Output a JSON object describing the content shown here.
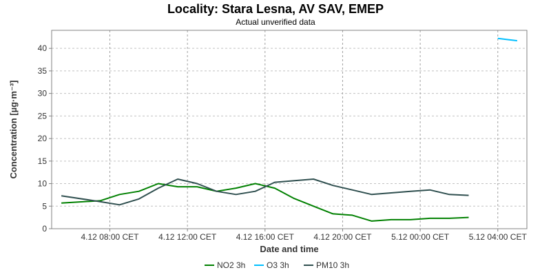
{
  "chart_data": {
    "type": "line",
    "title": "Locality: Stara Lesna, AV SAV, EMEP",
    "subtitle": "Actual unverified data",
    "xlabel": "Date and time",
    "ylabel": "Concentration [µg·m⁻³]",
    "x_time_domain": [
      "4.12 05:00",
      "5.12 05:30"
    ],
    "xticks": [
      {
        "time": "4.12 08:00",
        "label": "4.12 08:00 CET"
      },
      {
        "time": "4.12 12:00",
        "label": "4.12 12:00 CET"
      },
      {
        "time": "4.12 16:00",
        "label": "4.12 16:00 CET"
      },
      {
        "time": "4.12 20:00",
        "label": "4.12 20:00 CET"
      },
      {
        "time": "5.12 00:00",
        "label": "5.12 00:00 CET"
      },
      {
        "time": "5.12 04:00",
        "label": "5.12 04:00 CET"
      }
    ],
    "ylim": [
      0,
      44
    ],
    "yticks": [
      0,
      5,
      10,
      15,
      20,
      25,
      30,
      35,
      40
    ],
    "grid": true,
    "legend_position": "bottom",
    "series": [
      {
        "name": "NO2 3h",
        "color": "#008000",
        "points": [
          [
            "4.12 05:30",
            5.7
          ],
          [
            "4.12 07:30",
            6.2
          ],
          [
            "4.12 08:30",
            7.6
          ],
          [
            "4.12 09:30",
            8.3
          ],
          [
            "4.12 10:30",
            10.0
          ],
          [
            "4.12 11:30",
            9.3
          ],
          [
            "4.12 12:30",
            9.3
          ],
          [
            "4.12 13:30",
            8.3
          ],
          [
            "4.12 14:30",
            9.0
          ],
          [
            "4.12 15:30",
            10.0
          ],
          [
            "4.12 16:30",
            9.0
          ],
          [
            "4.12 17:30",
            6.7
          ],
          [
            "4.12 18:30",
            5.0
          ],
          [
            "4.12 19:30",
            3.3
          ],
          [
            "4.12 20:30",
            3.0
          ],
          [
            "4.12 21:30",
            1.7
          ],
          [
            "4.12 22:30",
            2.0
          ],
          [
            "4.12 23:30",
            2.0
          ],
          [
            "5.12 00:30",
            2.3
          ],
          [
            "5.12 01:30",
            2.3
          ],
          [
            "5.12 02:30",
            2.5
          ]
        ]
      },
      {
        "name": "O3 3h",
        "color": "#00bfff",
        "points": [
          [
            "5.12 04:00",
            42.2
          ],
          [
            "5.12 05:00",
            41.7
          ]
        ]
      },
      {
        "name": "PM10 3h",
        "color": "#2f4f4f",
        "points": [
          [
            "4.12 05:30",
            7.3
          ],
          [
            "4.12 07:30",
            6.0
          ],
          [
            "4.12 08:30",
            5.3
          ],
          [
            "4.12 09:30",
            6.6
          ],
          [
            "4.12 10:30",
            9.0
          ],
          [
            "4.12 11:30",
            11.0
          ],
          [
            "4.12 12:30",
            10.0
          ],
          [
            "4.12 13:30",
            8.3
          ],
          [
            "4.12 14:30",
            7.6
          ],
          [
            "4.12 15:30",
            8.3
          ],
          [
            "4.12 16:30",
            10.3
          ],
          [
            "4.12 18:30",
            11.0
          ],
          [
            "4.12 19:30",
            9.6
          ],
          [
            "4.12 20:30",
            8.6
          ],
          [
            "4.12 21:30",
            7.6
          ],
          [
            "4.12 23:30",
            8.3
          ],
          [
            "5.12 00:30",
            8.6
          ],
          [
            "5.12 01:30",
            7.6
          ],
          [
            "5.12 02:30",
            7.4
          ]
        ]
      }
    ]
  }
}
